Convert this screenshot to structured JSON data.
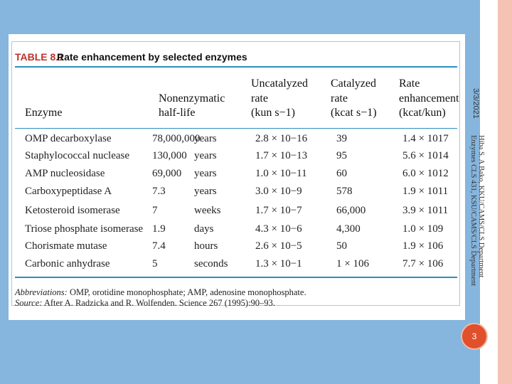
{
  "slide": {
    "date": "3/3/2021",
    "footer_line1": "Hiba S. A Bako, KKU/CAMS/CLS Department",
    "footer_line2": "Enzymes CLS 431, KSU/CAMS/CLS Department",
    "page_number": "3",
    "colors": {
      "background_blue": "#86b5dd",
      "right_strip": "#f4c3b4",
      "page_circle": "#e0502a",
      "table_label": "#c0302a",
      "rules": "#2c8fbf"
    }
  },
  "table": {
    "label": "TABLE 8.1",
    "title": "Rate enhancement by selected enzymes",
    "headers": {
      "enzyme": "Enzyme",
      "half_life": [
        "Nonenzymatic",
        "half-life"
      ],
      "uncatalyzed": [
        "Uncatalyzed",
        "rate",
        "(kun s−1)"
      ],
      "catalyzed": [
        "Catalyzed",
        "rate",
        "(kcat s−1)"
      ],
      "enhancement": [
        "Rate",
        "enhancement",
        "(kcat/kun)"
      ]
    },
    "rows": [
      {
        "enzyme": "OMP decarboxylase",
        "half_life_value": "78,000,000",
        "half_life_unit": "years",
        "uncatalyzed": "2.8 × 10−16",
        "catalyzed": "39",
        "enhancement": "1.4 × 1017"
      },
      {
        "enzyme": "Staphylococcal nuclease",
        "half_life_value": "130,000",
        "half_life_unit": "years",
        "uncatalyzed": "1.7 × 10−13",
        "catalyzed": "95",
        "enhancement": "5.6 × 1014"
      },
      {
        "enzyme": "AMP nucleosidase",
        "half_life_value": "69,000",
        "half_life_unit": "years",
        "uncatalyzed": "1.0 × 10−11",
        "catalyzed": "60",
        "enhancement": "6.0 × 1012"
      },
      {
        "enzyme": "Carboxypeptidase A",
        "half_life_value": "7.3",
        "half_life_unit": "years",
        "uncatalyzed": "3.0 × 10−9",
        "catalyzed": "578",
        "enhancement": "1.9 × 1011"
      },
      {
        "enzyme": "Ketosteroid isomerase",
        "half_life_value": "7",
        "half_life_unit": "weeks",
        "uncatalyzed": "1.7 × 10−7",
        "catalyzed": "66,000",
        "enhancement": "3.9 × 1011"
      },
      {
        "enzyme": "Triose phosphate isomerase",
        "half_life_value": "1.9",
        "half_life_unit": "days",
        "uncatalyzed": "4.3 × 10−6",
        "catalyzed": "4,300",
        "enhancement": "1.0 × 109"
      },
      {
        "enzyme": "Chorismate mutase",
        "half_life_value": "7.4",
        "half_life_unit": "hours",
        "uncatalyzed": "2.6 × 10−5",
        "catalyzed": "50",
        "enhancement": "1.9 × 106"
      },
      {
        "enzyme": "Carbonic anhydrase",
        "half_life_value": "5",
        "half_life_unit": "seconds",
        "uncatalyzed": "1.3 × 10−1",
        "catalyzed": "1 × 106",
        "enhancement": "7.7 × 106"
      }
    ],
    "footnote_abbrev_label": "Abbreviations:",
    "footnote_abbrev": "OMP, orotidine monophosphate; AMP, adenosine monophosphate.",
    "footnote_source_label": "Source:",
    "footnote_source": "After A. Radzicka and R. Wolfenden. Science 267 (1995):90–93."
  }
}
